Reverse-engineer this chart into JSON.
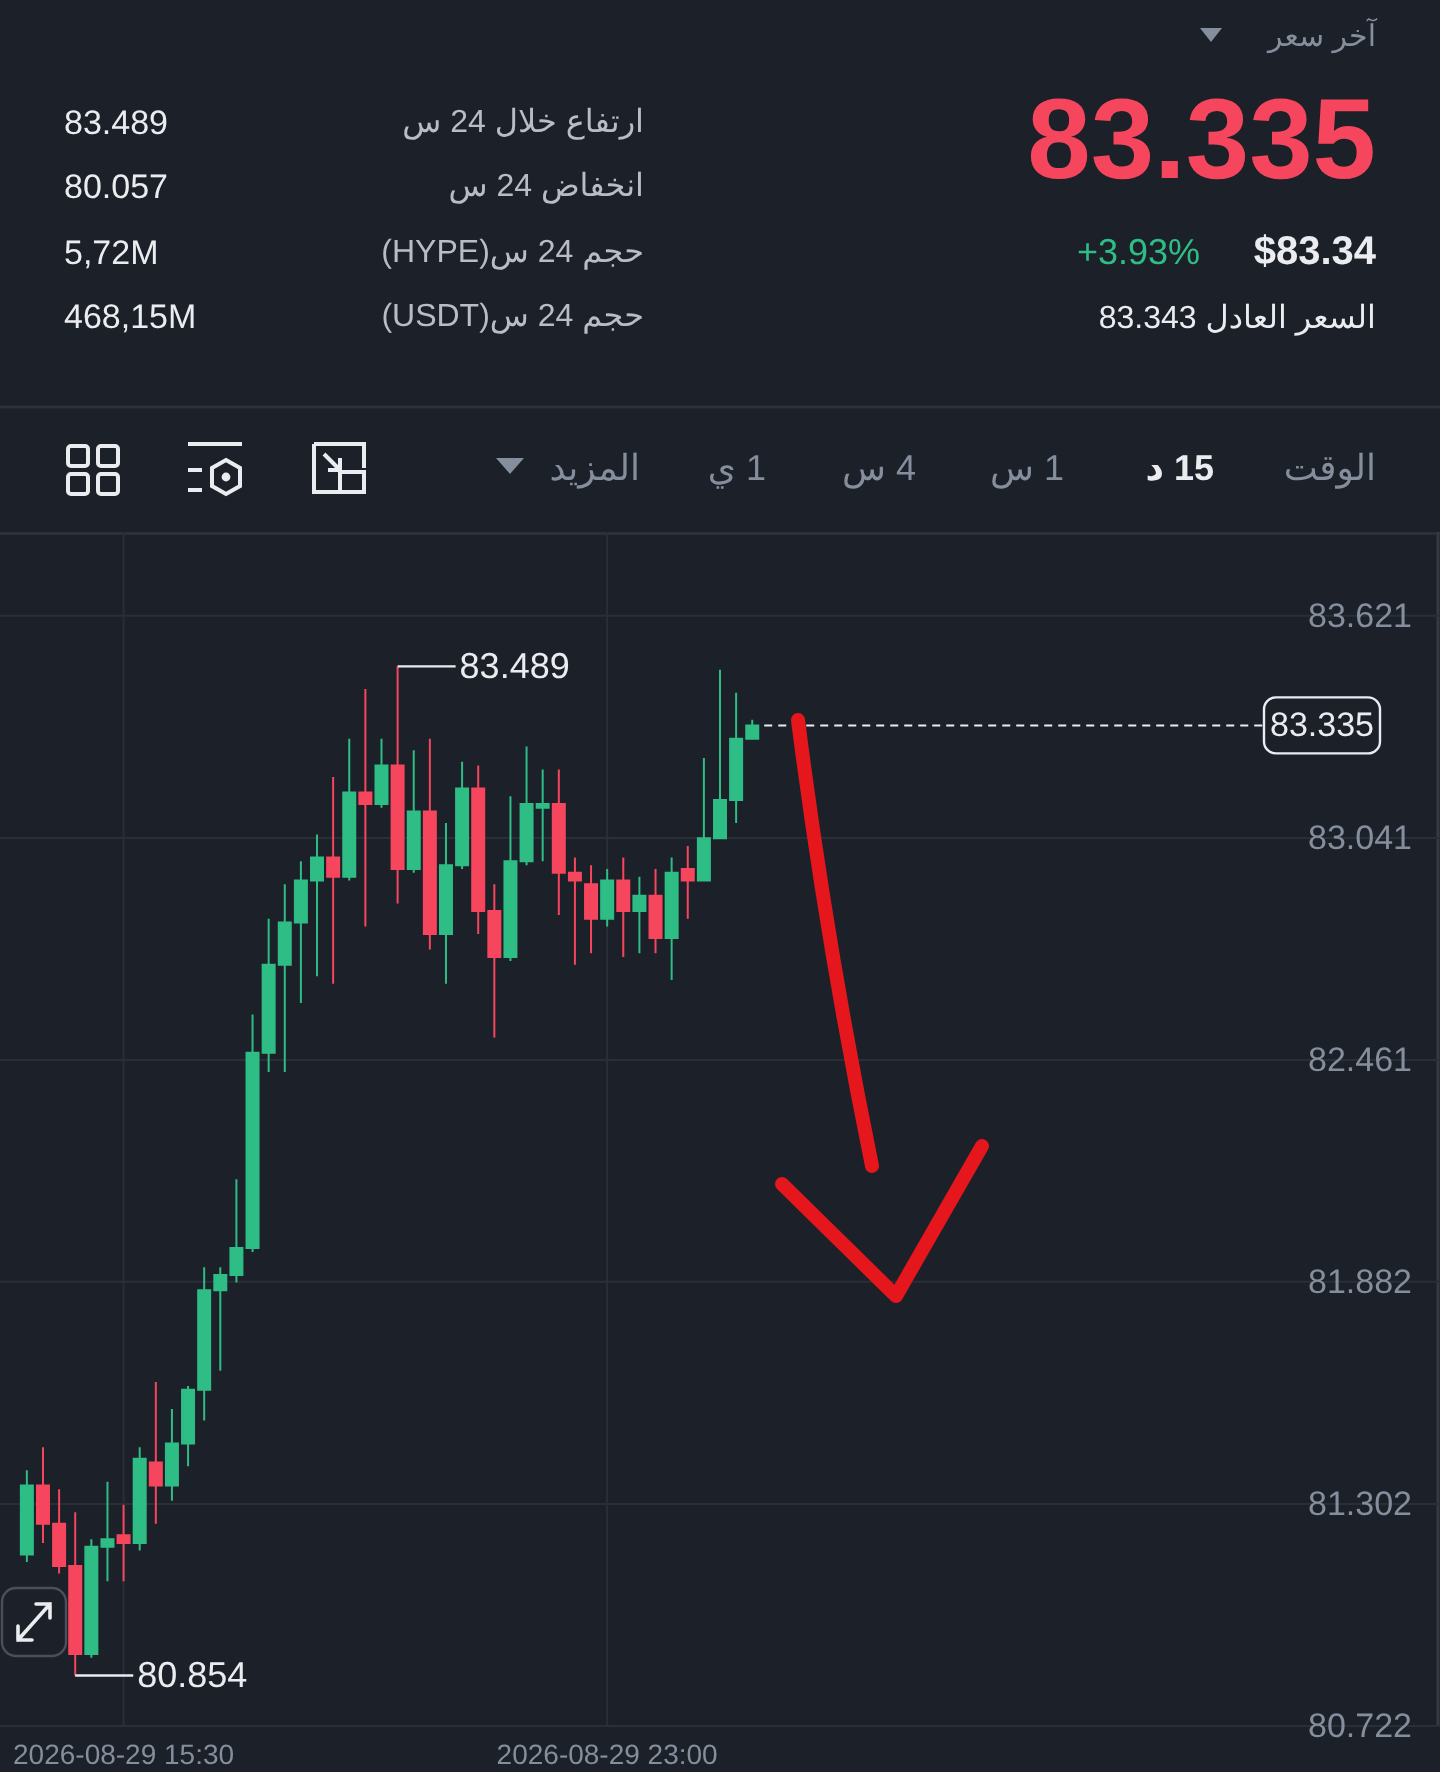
{
  "chart_data": {
    "type": "candlestick",
    "x": [
      "2026-08-29T14:00",
      "2026-08-29T14:15",
      "2026-08-29T14:30",
      "2026-08-29T14:45",
      "2026-08-29T15:00",
      "2026-08-29T15:15",
      "2026-08-29T15:30",
      "2026-08-29T15:45",
      "2026-08-29T16:00",
      "2026-08-29T16:15",
      "2026-08-29T16:30",
      "2026-08-29T16:45",
      "2026-08-29T17:00",
      "2026-08-29T17:15",
      "2026-08-29T17:30",
      "2026-08-29T17:45",
      "2026-08-29T18:00",
      "2026-08-29T18:15",
      "2026-08-29T18:30",
      "2026-08-29T18:45",
      "2026-08-29T19:00",
      "2026-08-29T19:15",
      "2026-08-29T19:30",
      "2026-08-29T19:45",
      "2026-08-29T20:00",
      "2026-08-29T20:15",
      "2026-08-29T20:30",
      "2026-08-29T20:45",
      "2026-08-29T21:00",
      "2026-08-29T21:15",
      "2026-08-29T21:30",
      "2026-08-29T21:45",
      "2026-08-29T22:00",
      "2026-08-29T22:15",
      "2026-08-29T22:30",
      "2026-08-29T22:45",
      "2026-08-29T23:00",
      "2026-08-29T23:15",
      "2026-08-29T23:30",
      "2026-08-29T23:45",
      "2026-08-30T00:00",
      "2026-08-30T00:15",
      "2026-08-30T00:30",
      "2026-08-30T00:45",
      "2026-08-30T01:00",
      "2026-08-30T01:15"
    ],
    "ohlc": [
      [
        81.17,
        81.39,
        81.15,
        81.35
      ],
      [
        81.35,
        81.45,
        81.2,
        81.25
      ],
      [
        81.25,
        81.34,
        81.12,
        81.14
      ],
      [
        81.14,
        81.28,
        80.854,
        80.91
      ],
      [
        80.91,
        81.21,
        80.9,
        81.19
      ],
      [
        81.19,
        81.36,
        81.1,
        81.21
      ],
      [
        81.22,
        81.3,
        81.1,
        81.2
      ],
      [
        81.2,
        81.45,
        81.18,
        81.42
      ],
      [
        81.41,
        81.62,
        81.25,
        81.35
      ],
      [
        81.35,
        81.55,
        81.31,
        81.46
      ],
      [
        81.46,
        81.61,
        81.4,
        81.6
      ],
      [
        81.6,
        81.92,
        81.52,
        81.86
      ],
      [
        81.86,
        81.92,
        81.65,
        81.9
      ],
      [
        81.9,
        82.15,
        81.88,
        81.97
      ],
      [
        81.97,
        82.58,
        81.96,
        82.48
      ],
      [
        82.48,
        82.83,
        82.43,
        82.71
      ],
      [
        82.71,
        82.92,
        82.43,
        82.82
      ],
      [
        82.82,
        82.98,
        82.61,
        82.93
      ],
      [
        82.93,
        83.05,
        82.68,
        82.99
      ],
      [
        82.99,
        83.2,
        82.66,
        82.94
      ],
      [
        82.94,
        83.3,
        82.93,
        83.16
      ],
      [
        83.16,
        83.43,
        82.81,
        83.13
      ],
      [
        83.13,
        83.3,
        83.12,
        83.23
      ],
      [
        83.23,
        83.489,
        82.87,
        82.96
      ],
      [
        82.96,
        83.27,
        82.95,
        83.11
      ],
      [
        83.11,
        83.3,
        82.75,
        82.79
      ],
      [
        82.79,
        83.08,
        82.66,
        82.97
      ],
      [
        82.97,
        83.24,
        82.96,
        83.17
      ],
      [
        83.17,
        83.23,
        82.79,
        82.85
      ],
      [
        82.85,
        82.92,
        82.52,
        82.73
      ],
      [
        82.73,
        83.15,
        82.72,
        82.98
      ],
      [
        82.98,
        83.28,
        82.97,
        83.13
      ],
      [
        83.12,
        83.22,
        82.98,
        83.13
      ],
      [
        83.13,
        83.22,
        82.84,
        82.95
      ],
      [
        82.95,
        82.99,
        82.71,
        82.93
      ],
      [
        82.92,
        82.97,
        82.74,
        82.83
      ],
      [
        82.83,
        82.96,
        82.81,
        82.93
      ],
      [
        82.93,
        82.99,
        82.73,
        82.85
      ],
      [
        82.85,
        82.94,
        82.74,
        82.89
      ],
      [
        82.89,
        82.96,
        82.74,
        82.78
      ],
      [
        82.78,
        82.99,
        82.67,
        82.95
      ],
      [
        82.96,
        83.02,
        82.83,
        82.93
      ],
      [
        82.93,
        83.25,
        82.93,
        83.04
      ],
      [
        83.04,
        83.48,
        83.04,
        83.14
      ],
      [
        83.14,
        83.42,
        83.08,
        83.3
      ],
      [
        83.3,
        83.35,
        83.3,
        83.335
      ]
    ],
    "colors": [
      "#2ebd85",
      "#f6465d",
      "#f6465d",
      "#f6465d",
      "#2ebd85",
      "#2ebd85",
      "#f6465d",
      "#2ebd85",
      "#f6465d",
      "#2ebd85",
      "#2ebd85",
      "#2ebd85",
      "#2ebd85",
      "#2ebd85",
      "#2ebd85",
      "#2ebd85",
      "#2ebd85",
      "#2ebd85",
      "#2ebd85",
      "#f6465d",
      "#2ebd85",
      "#f6465d",
      "#2ebd85",
      "#f6465d",
      "#2ebd85",
      "#f6465d",
      "#2ebd85",
      "#2ebd85",
      "#f6465d",
      "#f6465d",
      "#2ebd85",
      "#2ebd85",
      "#2ebd85",
      "#f6465d",
      "#f6465d",
      "#f6465d",
      "#2ebd85",
      "#f6465d",
      "#2ebd85",
      "#f6465d",
      "#2ebd85",
      "#f6465d",
      "#2ebd85",
      "#2ebd85",
      "#2ebd85",
      "#2ebd85"
    ],
    "xlim": [
      "2026-08-29T13:35",
      "2026-08-30T11:55"
    ],
    "xticks": [
      {
        "value": "2026-08-29T15:30",
        "label": "2026-08-29 15:30"
      },
      {
        "value": "2026-08-29T23:00",
        "label": "2026-08-29 23:00"
      }
    ],
    "ylim": [
      80.722,
      83.84
    ],
    "yticks": [
      80.722,
      81.302,
      81.882,
      82.461,
      83.041,
      83.621
    ],
    "grid": true,
    "ref_lines": [
      {
        "axis": "y",
        "value": 83.335,
        "label": "83.335",
        "color": "#eaecef",
        "line_style": "dashed"
      }
    ],
    "annotations": [
      "آخر سعر",
      "83.335",
      "+3.93%",
      "$83.34",
      "السعر العادل 83.343",
      "ارتفاع خلال 24 س",
      "83.489",
      "انخفاض 24 س",
      "80.057",
      "حجم 24 س(HYPE)",
      "5,72M",
      "حجم 24 س(USDT)",
      "468,15M",
      "الوقت",
      "15 د",
      "1 س",
      "4 س",
      "1 ي",
      "المزيد",
      {
        "text": "83.489",
        "x": "2026-08-29T19:45",
        "y": 83.489
      },
      {
        "text": "80.854",
        "x": "2026-08-29T14:45",
        "y": 80.854
      }
    ]
  }
}
